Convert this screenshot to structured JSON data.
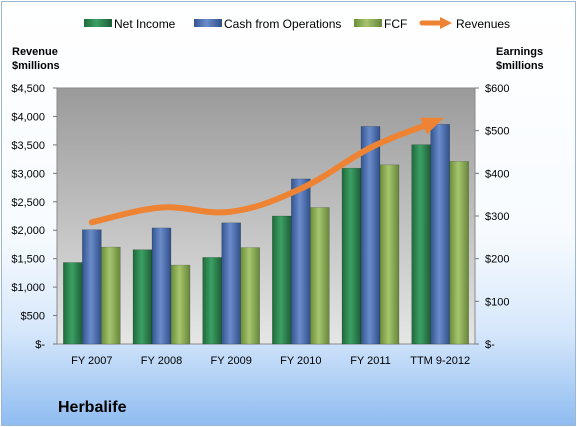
{
  "chart_data": {
    "type": "bar",
    "categories": [
      "FY 2007",
      "FY 2008",
      "FY 2009",
      "FY 2010",
      "FY 2011",
      "TTM 9-2012"
    ],
    "series": [
      {
        "name": "Net Income",
        "axis": "right",
        "color": "#2e8b57",
        "values": [
          191,
          221,
          203,
          300,
          412,
          467
        ]
      },
      {
        "name": "Cash from Operations",
        "axis": "right",
        "color": "#4f72b0",
        "values": [
          268,
          272,
          284,
          387,
          510,
          515
        ]
      },
      {
        "name": "FCF",
        "axis": "right",
        "color": "#8fb356",
        "values": [
          227,
          185,
          226,
          320,
          420,
          428
        ]
      },
      {
        "name": "Revenues",
        "type": "line",
        "axis": "left",
        "color": "#ee8433",
        "values": [
          2140,
          2400,
          2325,
          2730,
          3450,
          3950
        ]
      }
    ],
    "y_left": {
      "label_line1": "Revenue",
      "label_line2": "$millions",
      "range": [
        0,
        4500
      ],
      "ticks": [
        0,
        500,
        1000,
        1500,
        2000,
        2500,
        3000,
        3500,
        4000,
        4500
      ],
      "tick_labels": [
        "$-",
        "$500",
        "$1,000",
        "$1,500",
        "$2,000",
        "$2,500",
        "$3,000",
        "$3,500",
        "$4,000",
        "$4,500"
      ]
    },
    "y_right": {
      "label_line1": "Earnings",
      "label_line2": "$millions",
      "range": [
        0,
        600
      ],
      "ticks": [
        0,
        100,
        200,
        300,
        400,
        500,
        600
      ],
      "tick_labels": [
        "$-",
        "$100",
        "$200",
        "$300",
        "$400",
        "$500",
        "$600"
      ]
    },
    "legend_position": "top",
    "grid": false,
    "plot_background": "#b2b2b2"
  },
  "company_name": "Herbalife"
}
